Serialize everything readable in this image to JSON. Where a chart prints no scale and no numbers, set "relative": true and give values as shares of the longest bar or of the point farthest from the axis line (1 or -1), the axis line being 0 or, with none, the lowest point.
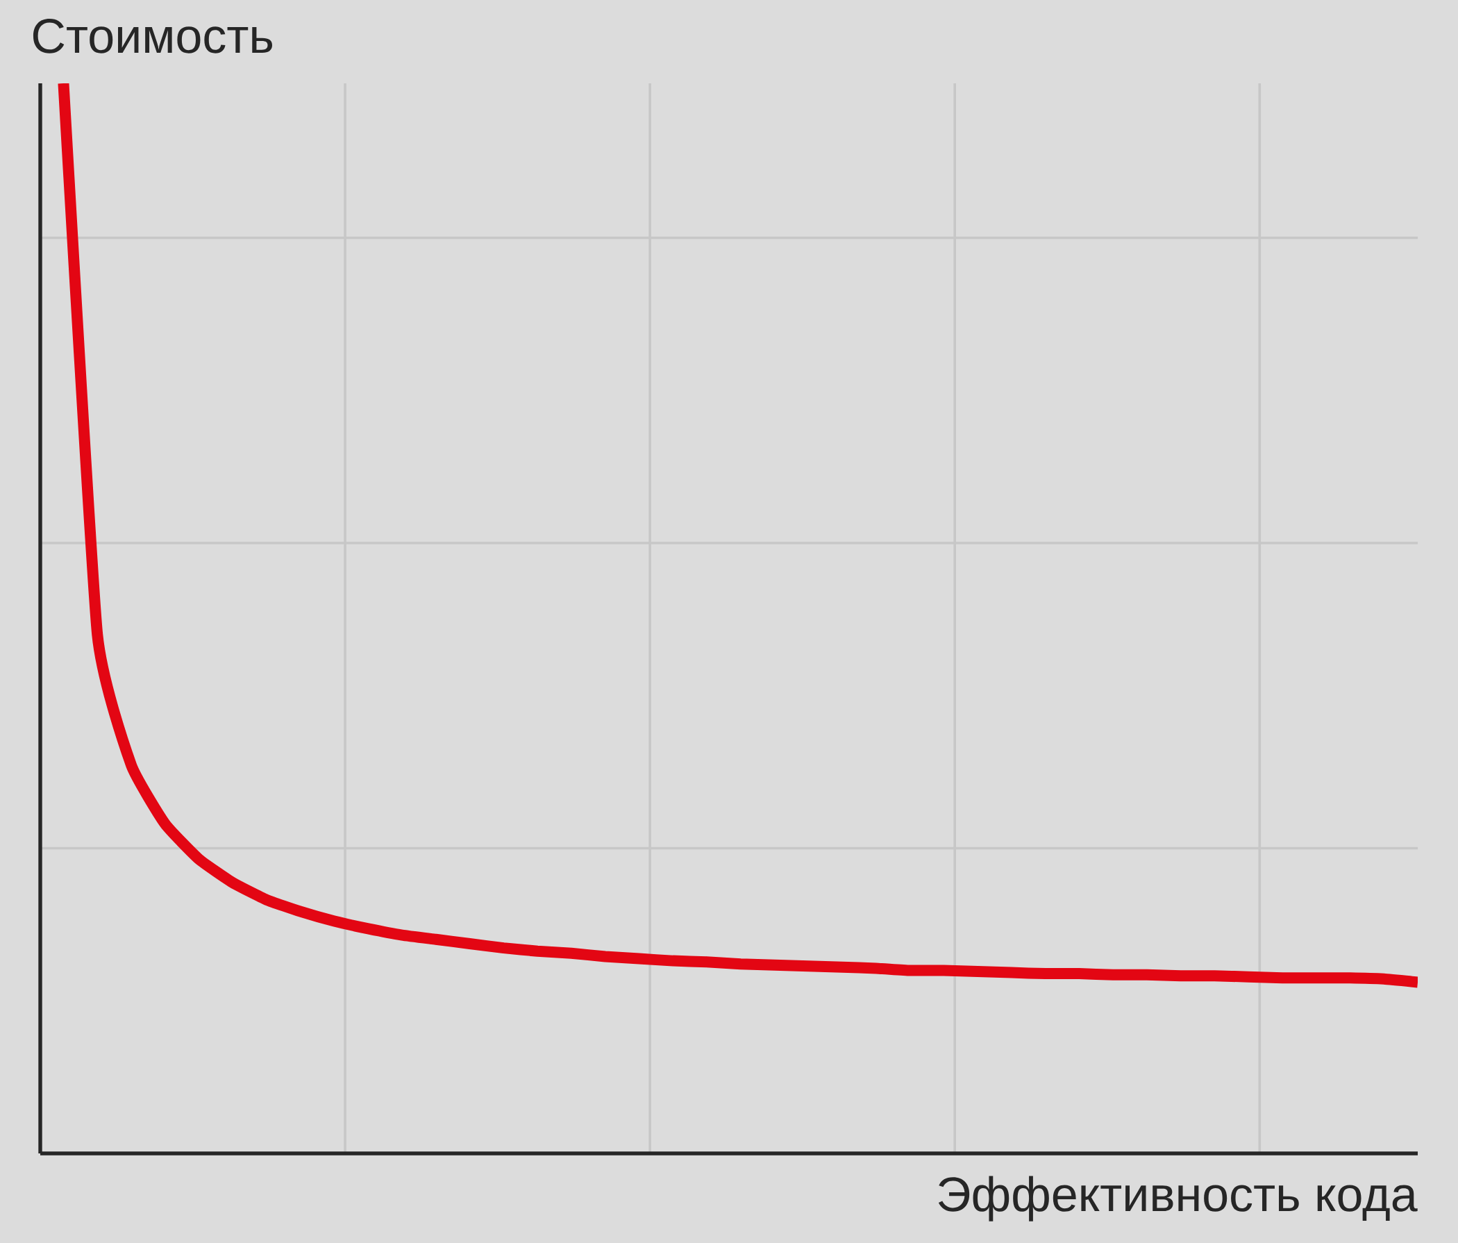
{
  "chart_data": {
    "type": "line",
    "xlabel": "Эффективность кода",
    "ylabel": "Стоимость",
    "relative": true,
    "grid": true,
    "color": "#e30613",
    "categories": [
      null,
      null,
      null,
      null,
      null,
      null,
      null,
      null,
      null,
      null,
      null,
      null,
      null,
      null,
      null,
      null,
      null,
      null,
      null,
      null,
      null,
      null,
      null,
      null,
      null,
      null,
      null,
      null,
      null,
      null,
      null,
      null,
      null,
      null,
      null,
      null,
      null,
      null,
      null,
      null,
      null
    ],
    "values": [
      1.0,
      0.485,
      0.363,
      0.308,
      0.275,
      0.253,
      0.237,
      0.226,
      0.217,
      0.21,
      0.204,
      0.2,
      0.196,
      0.192,
      0.189,
      0.187,
      0.184,
      0.182,
      0.18,
      0.179,
      0.177,
      0.176,
      0.175,
      0.174,
      0.173,
      0.171,
      0.171,
      0.17,
      0.169,
      0.168,
      0.168,
      0.167,
      0.167,
      0.166,
      0.166,
      0.165,
      0.164,
      0.164,
      0.164,
      0.163,
      0.16
    ]
  }
}
